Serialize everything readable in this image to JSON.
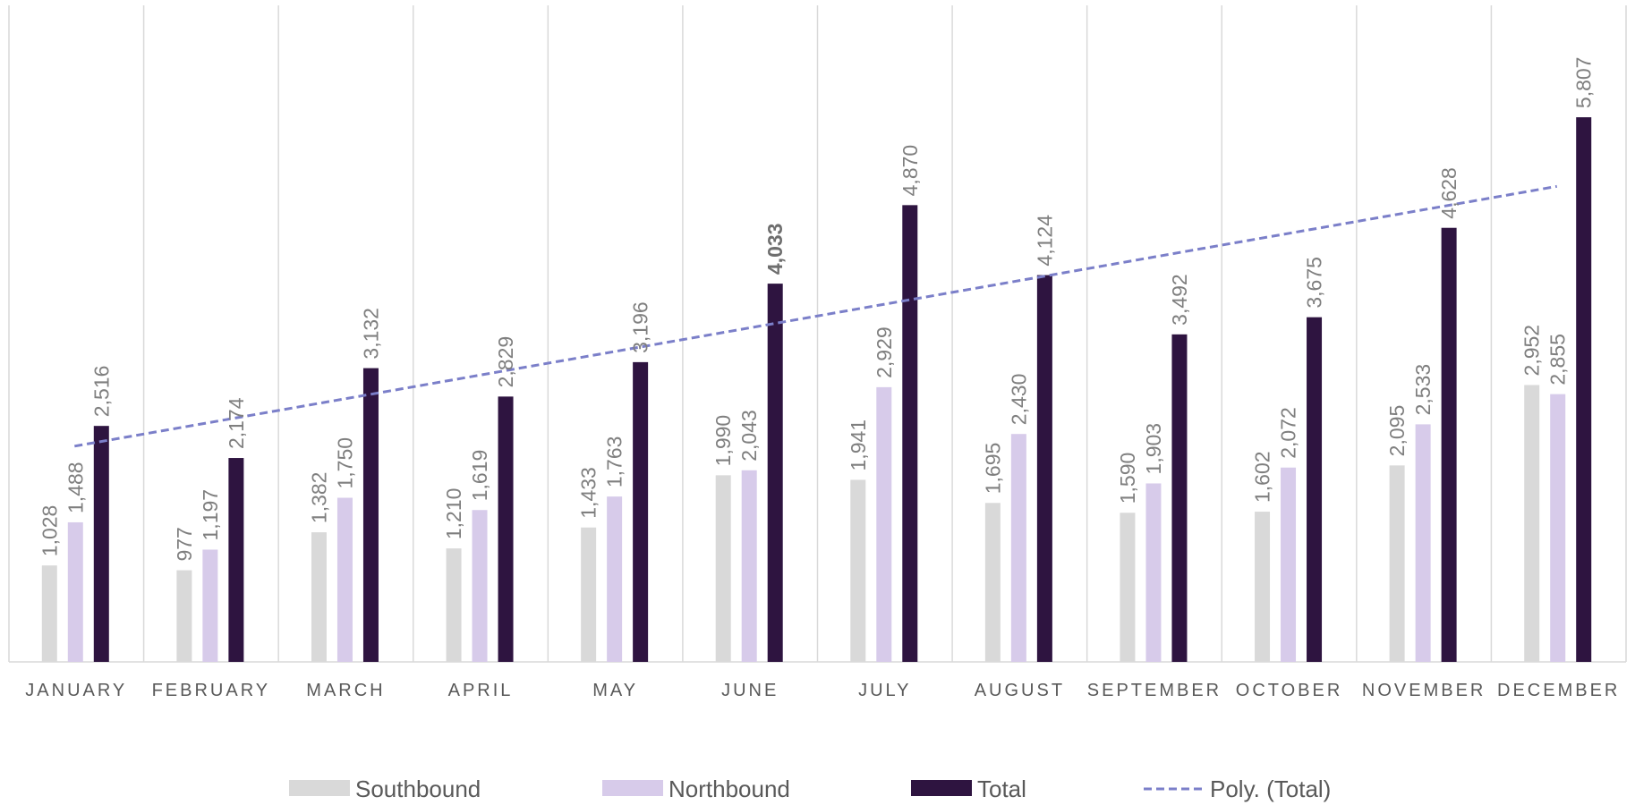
{
  "chart_data": {
    "type": "bar",
    "categories": [
      "JANUARY",
      "FEBRUARY",
      "MARCH",
      "APRIL",
      "MAY",
      "JUNE",
      "JULY",
      "AUGUST",
      "SEPTEMBER",
      "OCTOBER",
      "NOVEMBER",
      "DECEMBER"
    ],
    "series": [
      {
        "name": "Southbound",
        "color": "#d9d9d9",
        "values": [
          1028,
          977,
          1382,
          1210,
          1433,
          1990,
          1941,
          1695,
          1590,
          1602,
          2095,
          2952
        ]
      },
      {
        "name": "Northbound",
        "color": "#d7cbea",
        "values": [
          1488,
          1197,
          1750,
          1619,
          1763,
          2043,
          2929,
          2430,
          1903,
          2072,
          2533,
          2855
        ]
      },
      {
        "name": "Total",
        "color": "#2e1440",
        "values": [
          2516,
          2174,
          3132,
          2829,
          3196,
          4033,
          4870,
          4124,
          3492,
          3675,
          4628,
          5807
        ]
      }
    ],
    "value_labels": {
      "Southbound": [
        "1,028",
        "977",
        "1,382",
        "1,210",
        "1,433",
        "1,990",
        "1,941",
        "1,695",
        "1,590",
        "1,602",
        "2,095",
        "2,952"
      ],
      "Northbound": [
        "1,488",
        "1,197",
        "1,750",
        "1,619",
        "1,763",
        "2,043",
        "2,929",
        "2,430",
        "1,903",
        "2,072",
        "2,533",
        "2,855"
      ],
      "Total": [
        "2,516",
        "2,174",
        "3,132",
        "2,829",
        "3,196",
        "4,033",
        "4,870",
        "4,124",
        "3,492",
        "3,675",
        "4,628",
        "5,807"
      ]
    },
    "emphasized_label": {
      "series": "Total",
      "category": "JUNE"
    },
    "trendline": {
      "name": "Poly. (Total)",
      "series": "Total",
      "kind": "polynomial",
      "color": "#7b7fc9",
      "style": "dashed",
      "start": 2300,
      "end": 5070
    },
    "ylim": [
      0,
      7000
    ],
    "grid": "vertical",
    "legend_position": "bottom",
    "title": "",
    "xlabel": "",
    "ylabel": ""
  }
}
